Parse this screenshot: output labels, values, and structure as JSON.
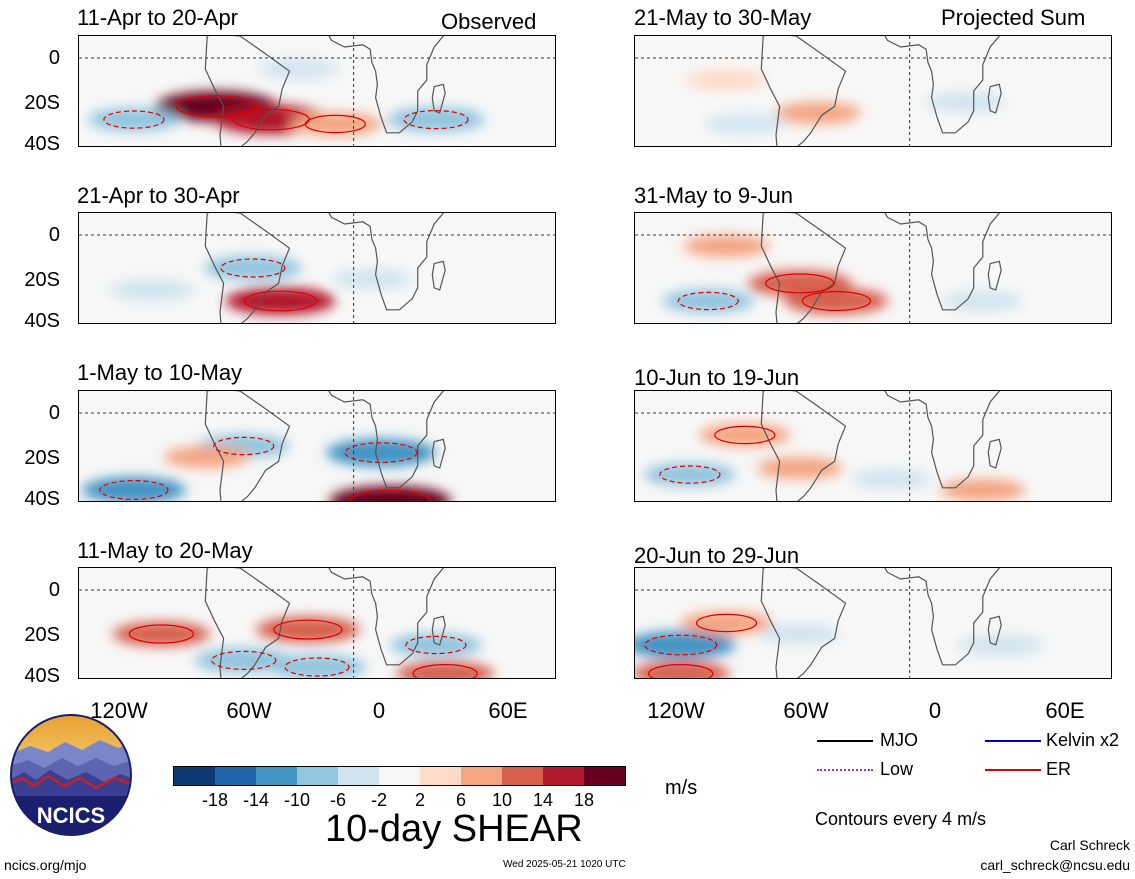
{
  "header": {
    "observed_label": "Observed",
    "projected_label": "Projected Sum"
  },
  "y_ticks": [
    "0",
    "20S",
    "40S"
  ],
  "x_ticks": [
    "120W",
    "60W",
    "0",
    "60E"
  ],
  "panels": [
    {
      "title": "11-Apr to 20-Apr"
    },
    {
      "title": "21-Apr to 30-Apr"
    },
    {
      "title": "1-May to 10-May"
    },
    {
      "title": "11-May to 20-May"
    },
    {
      "title": "21-May to 30-May"
    },
    {
      "title": "31-May to 9-Jun"
    },
    {
      "title": "10-Jun to 19-Jun"
    },
    {
      "title": "20-Jun to 29-Jun"
    }
  ],
  "colorbar": {
    "colors": [
      "#0d3a72",
      "#2166ac",
      "#4393c3",
      "#92c5de",
      "#d1e5f0",
      "#f7f7f7",
      "#fddbc7",
      "#f4a582",
      "#d6604d",
      "#b2182b",
      "#67001f"
    ],
    "labels": [
      "-18",
      "-14",
      "-10",
      "-6",
      "-2",
      "2",
      "6",
      "10",
      "14",
      "18"
    ],
    "units": "m/s"
  },
  "title": "10-day SHEAR",
  "legend": {
    "items": [
      {
        "label": "MJO",
        "color": "#000000"
      },
      {
        "label": "Kelvin x2",
        "color": "#0000cc"
      },
      {
        "label": "Low",
        "color": "#9933cc"
      },
      {
        "label": "ER",
        "color": "#dd0000"
      }
    ],
    "note": "Contours every 4 m/s"
  },
  "footer": {
    "site": "ncics.org/mjo",
    "timestamp": "Wed 2025-05-21 1020 UTC",
    "author": "Carl Schreck",
    "email": "carl_schreck@ncsu.edu",
    "logo_text": "NCICS"
  },
  "chart_data": {
    "type": "heatmap",
    "title": "10-day SHEAR",
    "units": "m/s",
    "x_ticks": [
      "120W",
      "60W",
      "0",
      "60E"
    ],
    "y_ticks": [
      "0",
      "20S",
      "40S"
    ],
    "color_levels": [
      -18,
      -14,
      -10,
      -6,
      -2,
      2,
      6,
      10,
      14,
      18
    ],
    "contour_interval": "4 m/s",
    "panels": [
      {
        "title": "11-Apr to 20-Apr",
        "kind": "Observed",
        "features": [
          {
            "lon": -75,
            "lat": -22,
            "value": 18
          },
          {
            "lon": -45,
            "lat": -28,
            "value": 16
          },
          {
            "lon": -10,
            "lat": -30,
            "value": 8
          },
          {
            "lon": 45,
            "lat": -28,
            "value": -10
          },
          {
            "lon": -120,
            "lat": -28,
            "value": -8
          },
          {
            "lon": -30,
            "lat": -5,
            "value": -4
          }
        ]
      },
      {
        "title": "21-Apr to 30-Apr",
        "kind": "Observed",
        "features": [
          {
            "lon": -40,
            "lat": -30,
            "value": 14
          },
          {
            "lon": -55,
            "lat": -15,
            "value": -10
          },
          {
            "lon": -110,
            "lat": -25,
            "value": -6
          },
          {
            "lon": 10,
            "lat": -20,
            "value": -4
          }
        ]
      },
      {
        "title": "1-May to 10-May",
        "kind": "Observed",
        "features": [
          {
            "lon": 20,
            "lat": -40,
            "value": 18
          },
          {
            "lon": 15,
            "lat": -18,
            "value": -14
          },
          {
            "lon": -120,
            "lat": -35,
            "value": -12
          },
          {
            "lon": -60,
            "lat": -15,
            "value": -8
          },
          {
            "lon": -80,
            "lat": -20,
            "value": 6
          }
        ]
      },
      {
        "title": "11-May to 20-May",
        "kind": "Observed",
        "features": [
          {
            "lon": -25,
            "lat": -18,
            "value": 12
          },
          {
            "lon": -105,
            "lat": -20,
            "value": 10
          },
          {
            "lon": -60,
            "lat": -32,
            "value": -10
          },
          {
            "lon": -20,
            "lat": -35,
            "value": -10
          },
          {
            "lon": 45,
            "lat": -25,
            "value": -8
          },
          {
            "lon": 50,
            "lat": -38,
            "value": 10
          }
        ]
      },
      {
        "title": "21-May to 30-May",
        "kind": "Projected Sum",
        "features": [
          {
            "lon": -50,
            "lat": -25,
            "value": 6
          },
          {
            "lon": -100,
            "lat": -10,
            "value": 4
          },
          {
            "lon": -90,
            "lat": -30,
            "value": -4
          },
          {
            "lon": 30,
            "lat": -20,
            "value": -4
          }
        ]
      },
      {
        "title": "31-May to 9-Jun",
        "kind": "Projected Sum",
        "features": [
          {
            "lon": -60,
            "lat": -22,
            "value": 12
          },
          {
            "lon": -40,
            "lat": -30,
            "value": 12
          },
          {
            "lon": -110,
            "lat": -30,
            "value": -8
          },
          {
            "lon": -100,
            "lat": -5,
            "value": 6
          },
          {
            "lon": 40,
            "lat": -30,
            "value": -4
          }
        ]
      },
      {
        "title": "10-Jun to 19-Jun",
        "kind": "Projected Sum",
        "features": [
          {
            "lon": -90,
            "lat": -10,
            "value": 8
          },
          {
            "lon": -60,
            "lat": -25,
            "value": 6
          },
          {
            "lon": -120,
            "lat": -28,
            "value": -8
          },
          {
            "lon": -10,
            "lat": -30,
            "value": -4
          },
          {
            "lon": 40,
            "lat": -35,
            "value": 6
          }
        ]
      },
      {
        "title": "20-Jun to 29-Jun",
        "kind": "Projected Sum",
        "features": [
          {
            "lon": -125,
            "lat": -25,
            "value": -14
          },
          {
            "lon": -100,
            "lat": -15,
            "value": 8
          },
          {
            "lon": -125,
            "lat": -38,
            "value": 10
          },
          {
            "lon": -60,
            "lat": -20,
            "value": -4
          },
          {
            "lon": 50,
            "lat": -25,
            "value": -6
          }
        ]
      }
    ]
  }
}
